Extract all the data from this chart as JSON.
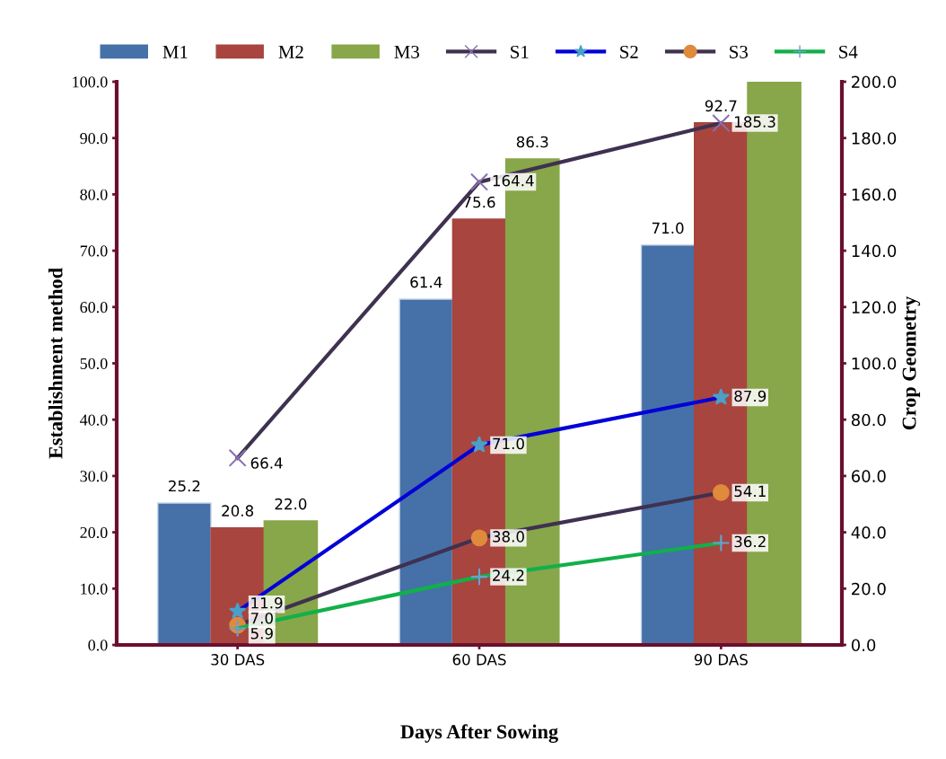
{
  "chart_data": {
    "type": "bar",
    "xlabel": "Days After Sowing",
    "ylabel": "Establishment method",
    "y2label": "Crop Geometry",
    "categories": [
      "30 DAS",
      "60 DAS",
      "90 DAS"
    ],
    "series": [
      {
        "name": "M1",
        "color": "#4571a8",
        "values": [
          25.2,
          61.4,
          71.0
        ],
        "value_labels": [
          "25.2",
          "61.4",
          "71.0"
        ]
      },
      {
        "name": "M2",
        "color": "#a8453f",
        "values": [
          20.8,
          75.6,
          92.7
        ],
        "value_labels": [
          "20.8",
          "75.6",
          "92.7"
        ]
      },
      {
        "name": "M3",
        "color": "#88a64a",
        "values": [
          22.0,
          86.3,
          100.0
        ],
        "value_labels": [
          "22.0",
          "86.3",
          null
        ]
      },
      {
        "name": "S1",
        "type": "line",
        "axis": "y2",
        "marker": "cross",
        "color": "#3f3150",
        "values": [
          66.4,
          164.4,
          185.3
        ],
        "value_labels": [
          "66.4",
          "164.4",
          "185.3"
        ]
      },
      {
        "name": "S2",
        "type": "line",
        "axis": "y2",
        "marker": "star",
        "color": "#0000d8",
        "values": [
          11.9,
          71.0,
          87.9
        ],
        "value_labels": [
          "11.9",
          "71.0",
          "87.9"
        ]
      },
      {
        "name": "S3",
        "type": "line",
        "axis": "y2",
        "marker": "circle",
        "color": "#3f3150",
        "values": [
          7.0,
          38.0,
          54.1
        ],
        "value_labels": [
          "7.0",
          "38.0",
          "54.1"
        ]
      },
      {
        "name": "S4",
        "type": "line",
        "axis": "y2",
        "marker": "plus",
        "color": "#11b04a",
        "values": [
          5.9,
          24.2,
          36.2
        ],
        "value_labels": [
          "5.9",
          "24.2",
          "36.2"
        ]
      }
    ],
    "ylim": [
      0,
      100
    ],
    "yticks": [
      {
        "value": 0,
        "label": "0.0"
      },
      {
        "value": 10,
        "label": "10.0"
      },
      {
        "value": 20,
        "label": "20.0"
      },
      {
        "value": 30,
        "label": "30.0"
      },
      {
        "value": 40,
        "label": "40.0"
      },
      {
        "value": 50,
        "label": "50.0"
      },
      {
        "value": 60,
        "label": "60.0"
      },
      {
        "value": 70,
        "label": "70.0"
      },
      {
        "value": 80,
        "label": "80.0"
      },
      {
        "value": 90,
        "label": "90.0"
      },
      {
        "value": 100,
        "label": "100.0"
      }
    ],
    "y2lim": [
      0,
      200
    ],
    "y2ticks": [
      {
        "value": 0,
        "label": "0.0"
      },
      {
        "value": 20,
        "label": "20.0"
      },
      {
        "value": 40,
        "label": "40.0"
      },
      {
        "value": 60,
        "label": "60.0"
      },
      {
        "value": 80,
        "label": "80.0"
      },
      {
        "value": 100,
        "label": "100.0"
      },
      {
        "value": 120,
        "label": "120.0"
      },
      {
        "value": 140,
        "label": "140.0"
      },
      {
        "value": 160,
        "label": "160.0"
      },
      {
        "value": 180,
        "label": "180.0"
      },
      {
        "value": 200,
        "label": "200.0"
      }
    ],
    "legend": "top",
    "grid": false
  }
}
